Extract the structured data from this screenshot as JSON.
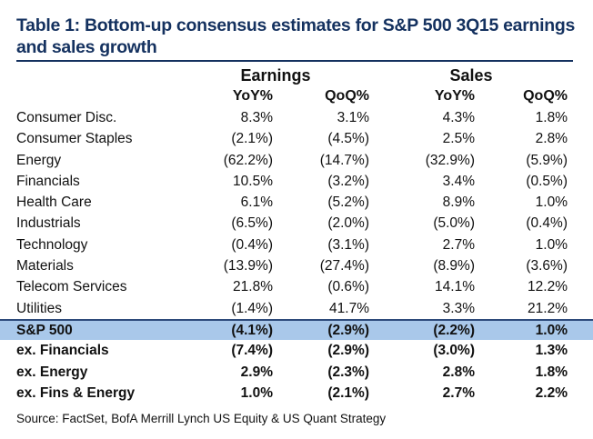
{
  "title": "Table 1: Bottom-up consensus estimates for S&P 500 3Q15 earnings and sales growth",
  "headers": {
    "earnings": "Earnings",
    "sales": "Sales",
    "sub": [
      "YoY%",
      "QoQ%",
      "YoY%",
      "QoQ%"
    ]
  },
  "rows": [
    {
      "label": "Consumer Disc.",
      "v": [
        "8.3%",
        "3.1%",
        "4.3%",
        "1.8%"
      ]
    },
    {
      "label": "Consumer Staples",
      "v": [
        "(2.1%)",
        "(4.5%)",
        "2.5%",
        "2.8%"
      ]
    },
    {
      "label": "Energy",
      "v": [
        "(62.2%)",
        "(14.7%)",
        "(32.9%)",
        "(5.9%)"
      ]
    },
    {
      "label": "Financials",
      "v": [
        "10.5%",
        "(3.2%)",
        "3.4%",
        "(0.5%)"
      ]
    },
    {
      "label": "Health Care",
      "v": [
        "6.1%",
        "(5.2%)",
        "8.9%",
        "1.0%"
      ]
    },
    {
      "label": "Industrials",
      "v": [
        "(6.5%)",
        "(2.0%)",
        "(5.0%)",
        "(0.4%)"
      ]
    },
    {
      "label": "Technology",
      "v": [
        "(0.4%)",
        "(3.1%)",
        "2.7%",
        "1.0%"
      ]
    },
    {
      "label": "Materials",
      "v": [
        "(13.9%)",
        "(27.4%)",
        "(8.9%)",
        "(3.6%)"
      ]
    },
    {
      "label": "Telecom Services",
      "v": [
        "21.8%",
        "(0.6%)",
        "14.1%",
        "12.2%"
      ]
    },
    {
      "label": "Utilities",
      "v": [
        "(1.4%)",
        "41.7%",
        "3.3%",
        "21.2%"
      ]
    }
  ],
  "summary_rows": [
    {
      "label": "S&P 500",
      "v": [
        "(4.1%)",
        "(2.9%)",
        "(2.2%)",
        "1.0%"
      ]
    },
    {
      "label": "ex. Financials",
      "v": [
        "(7.4%)",
        "(2.9%)",
        "(3.0%)",
        "1.3%"
      ]
    },
    {
      "label": "ex. Energy",
      "v": [
        "2.9%",
        "(2.3%)",
        "2.8%",
        "1.8%"
      ]
    },
    {
      "label": "ex. Fins & Energy",
      "v": [
        "1.0%",
        "(2.1%)",
        "2.7%",
        "2.2%"
      ]
    }
  ],
  "source": "Source: FactSet, BofA Merrill Lynch US Equity & US Quant Strategy",
  "colors": {
    "title": "#14315f",
    "highlight": "#a9c8ea"
  }
}
